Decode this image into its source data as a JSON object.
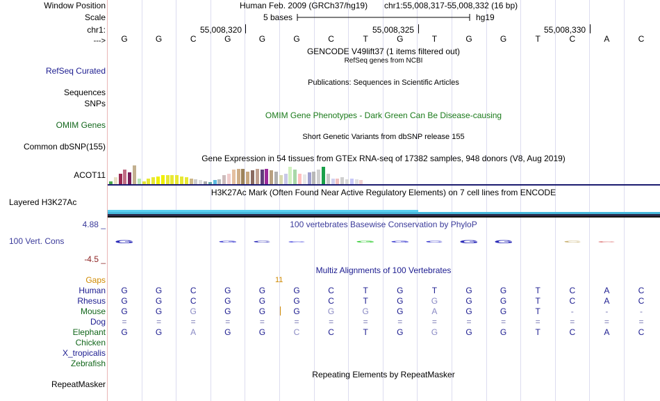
{
  "labels": {
    "window_position": "Window Position",
    "scale": "Scale",
    "chr": "chr1:",
    "strand": "--->",
    "refseq": "RefSeq Curated",
    "sequences": "Sequences",
    "snps": "SNPs",
    "omim_genes": "OMIM Genes",
    "common_dbsnp": "Common dbSNP(155)",
    "acot11": "ACOT11",
    "layered_h3k27ac": "Layered H3K27Ac",
    "cons_max": "4.88 _",
    "vert_cons": "100 Vert. Cons",
    "cons_min": "-4.5 _",
    "gaps": "Gaps",
    "species": [
      "Human",
      "Rhesus",
      "Mouse",
      "Dog",
      "Elephant",
      "Chicken",
      "X_tropicalis",
      "Zebrafish"
    ],
    "repeatmasker": "RepeatMasker"
  },
  "header": {
    "assembly": "Human Feb. 2009 (GRCh37/hg19)",
    "position": "chr1:55,008,317-55,008,332 (16 bp)",
    "scale_text": "5 bases",
    "scale_db": "hg19",
    "ticks": [
      "55,008,320",
      "55,008,325",
      "55,008,330"
    ]
  },
  "sequence": [
    "G",
    "G",
    "C",
    "G",
    "G",
    "G",
    "C",
    "T",
    "G",
    "T",
    "G",
    "G",
    "T",
    "C",
    "A",
    "C"
  ],
  "tracks": {
    "gencode": "GENCODE V49lift37 (1 items filtered out)",
    "refseq_sub": "RefSeq genes from NCBI",
    "publications": "Publications: Sequences in Scientific Articles",
    "omim_title": "OMIM Gene Phenotypes - Dark Green Can Be Disease-causing",
    "snp_title": "Short Genetic Variants from dbSNP release 155",
    "gtex_title": "Gene Expression in 54 tissues from GTEx RNA-seq of 17382 samples, 948 donors (V8, Aug 2019)",
    "h3k27ac_title": "H3K27Ac Mark (Often Found Near Active Regulatory Elements) on 7 cell lines from ENCODE",
    "phylop_title": "100 vertebrates Basewise Conservation by PhyloP",
    "multiz_title": "Multiz Alignments of 100 Vertebrates",
    "gap_count": "11",
    "repeat_title": "Repeating Elements by RepeatMasker"
  },
  "alignment": {
    "Human": [
      "G",
      "G",
      "C",
      "G",
      "G",
      "G",
      "C",
      "T",
      "G",
      "T",
      "G",
      "G",
      "T",
      "C",
      "A",
      "C"
    ],
    "Rhesus": [
      "G",
      "G",
      "C",
      "G",
      "G",
      "G",
      "C",
      "T",
      "G",
      "G",
      "G",
      "G",
      "T",
      "C",
      "A",
      "C"
    ],
    "Mouse": [
      "G",
      "G",
      "G",
      "G",
      "G",
      "G",
      "G",
      "G",
      "G",
      "A",
      "G",
      "G",
      "T",
      "-",
      "-",
      "-"
    ],
    "Dog": [
      "=",
      "=",
      "=",
      "=",
      "=",
      "=",
      "=",
      "=",
      "=",
      "=",
      "=",
      "=",
      "=",
      "=",
      "=",
      "="
    ],
    "Elephant": [
      "G",
      "G",
      "A",
      "G",
      "G",
      "C",
      "C",
      "T",
      "G",
      "G",
      "G",
      "G",
      "T",
      "C",
      "A",
      "C"
    ]
  },
  "gtex_values": [
    0.15,
    0.35,
    0.55,
    0.75,
    0.6,
    0.95,
    0.3,
    0.15,
    0.3,
    0.35,
    0.4,
    0.45,
    0.45,
    0.45,
    0.45,
    0.4,
    0.35,
    0.3,
    0.25,
    0.2,
    0.15,
    0.1,
    0.2,
    0.25,
    0.45,
    0.55,
    0.75,
    0.8,
    0.8,
    0.65,
    0.7,
    0.8,
    0.75,
    0.8,
    0.7,
    0.65,
    0.45,
    0.55,
    0.9,
    0.75,
    0.55,
    0.5,
    0.6,
    0.65,
    0.75,
    0.9,
    0.55,
    0.3,
    0.3,
    0.35,
    0.25,
    0.3,
    0.25,
    0.2
  ],
  "gtex_colors": [
    "#4da84d",
    "#e9e0c4",
    "#9b2a52",
    "#c06c84",
    "#7a1f5a",
    "#c3b08f",
    "#b8e8b8",
    "#e4e434",
    "#e8e834",
    "#e8e834",
    "#f0f000",
    "#f0f000",
    "#e8e834",
    "#e8e834",
    "#e8e834",
    "#e8e834",
    "#e8e834",
    "#cdb888",
    "#cccccc",
    "#ddd",
    "#aaa",
    "#6aa",
    "#5dbbe0",
    "#bbb",
    "#cdbcbc",
    "#f0cccc",
    "#e4c0a0",
    "#cfae88",
    "#9e845a",
    "#c8a880",
    "#8a6a60",
    "#c0a090",
    "#5e3d7a",
    "#9b2a9b",
    "#b8a080",
    "#b0b0b0",
    "#d8d8b0",
    "#c8c8e8",
    "#d0f0c0",
    "#a8d8a8",
    "#ffc0c0",
    "#e8e8e8",
    "#a0a0d0",
    "#b8b8b8",
    "#d0d0d0",
    "#1aa04a",
    "#c8c8c8",
    "#d0d0f0",
    "#f0c0c0",
    "#cfcfcf",
    "#d8d8d8",
    "#c8c8f8",
    "#e0e0e0",
    "#f0d0d0"
  ],
  "phylop": [
    {
      "base": "G",
      "color": "#2d2db8",
      "scale": 1.0
    },
    {
      "base": "G",
      "color": "#4040d0",
      "scale": 0.3
    },
    {
      "base": "C",
      "color": "#2d2db8",
      "scale": 0.25
    },
    {
      "base": "C",
      "color": "#5555e0",
      "scale": 0.2
    },
    {
      "base": "G",
      "color": "#33cc33",
      "scale": 0.25
    },
    {
      "base": "G",
      "color": "#4040d0",
      "scale": 0.25
    },
    {
      "base": "C",
      "color": "#4040d0",
      "scale": 0.3
    },
    {
      "base": "G",
      "color": "#2d2db8",
      "scale": 1.0
    },
    {
      "base": "G",
      "color": "#2d2db8",
      "scale": 1.0
    },
    {
      "base": "C",
      "color": "#c8b070",
      "scale": 0.4
    },
    {
      "base": "C",
      "color": "#e08080",
      "scale": 0.2
    }
  ],
  "colors": {
    "navy": "#1b1b8f",
    "label_green": "#11661a",
    "omim_green": "#1a7a1a",
    "gap_orange": "#d08a00",
    "cons_purple": "#3a3a9a",
    "cons_red": "#8a1e1e",
    "mismatch": "#8a8ac4",
    "h3k_cyan": "#5aceef"
  }
}
